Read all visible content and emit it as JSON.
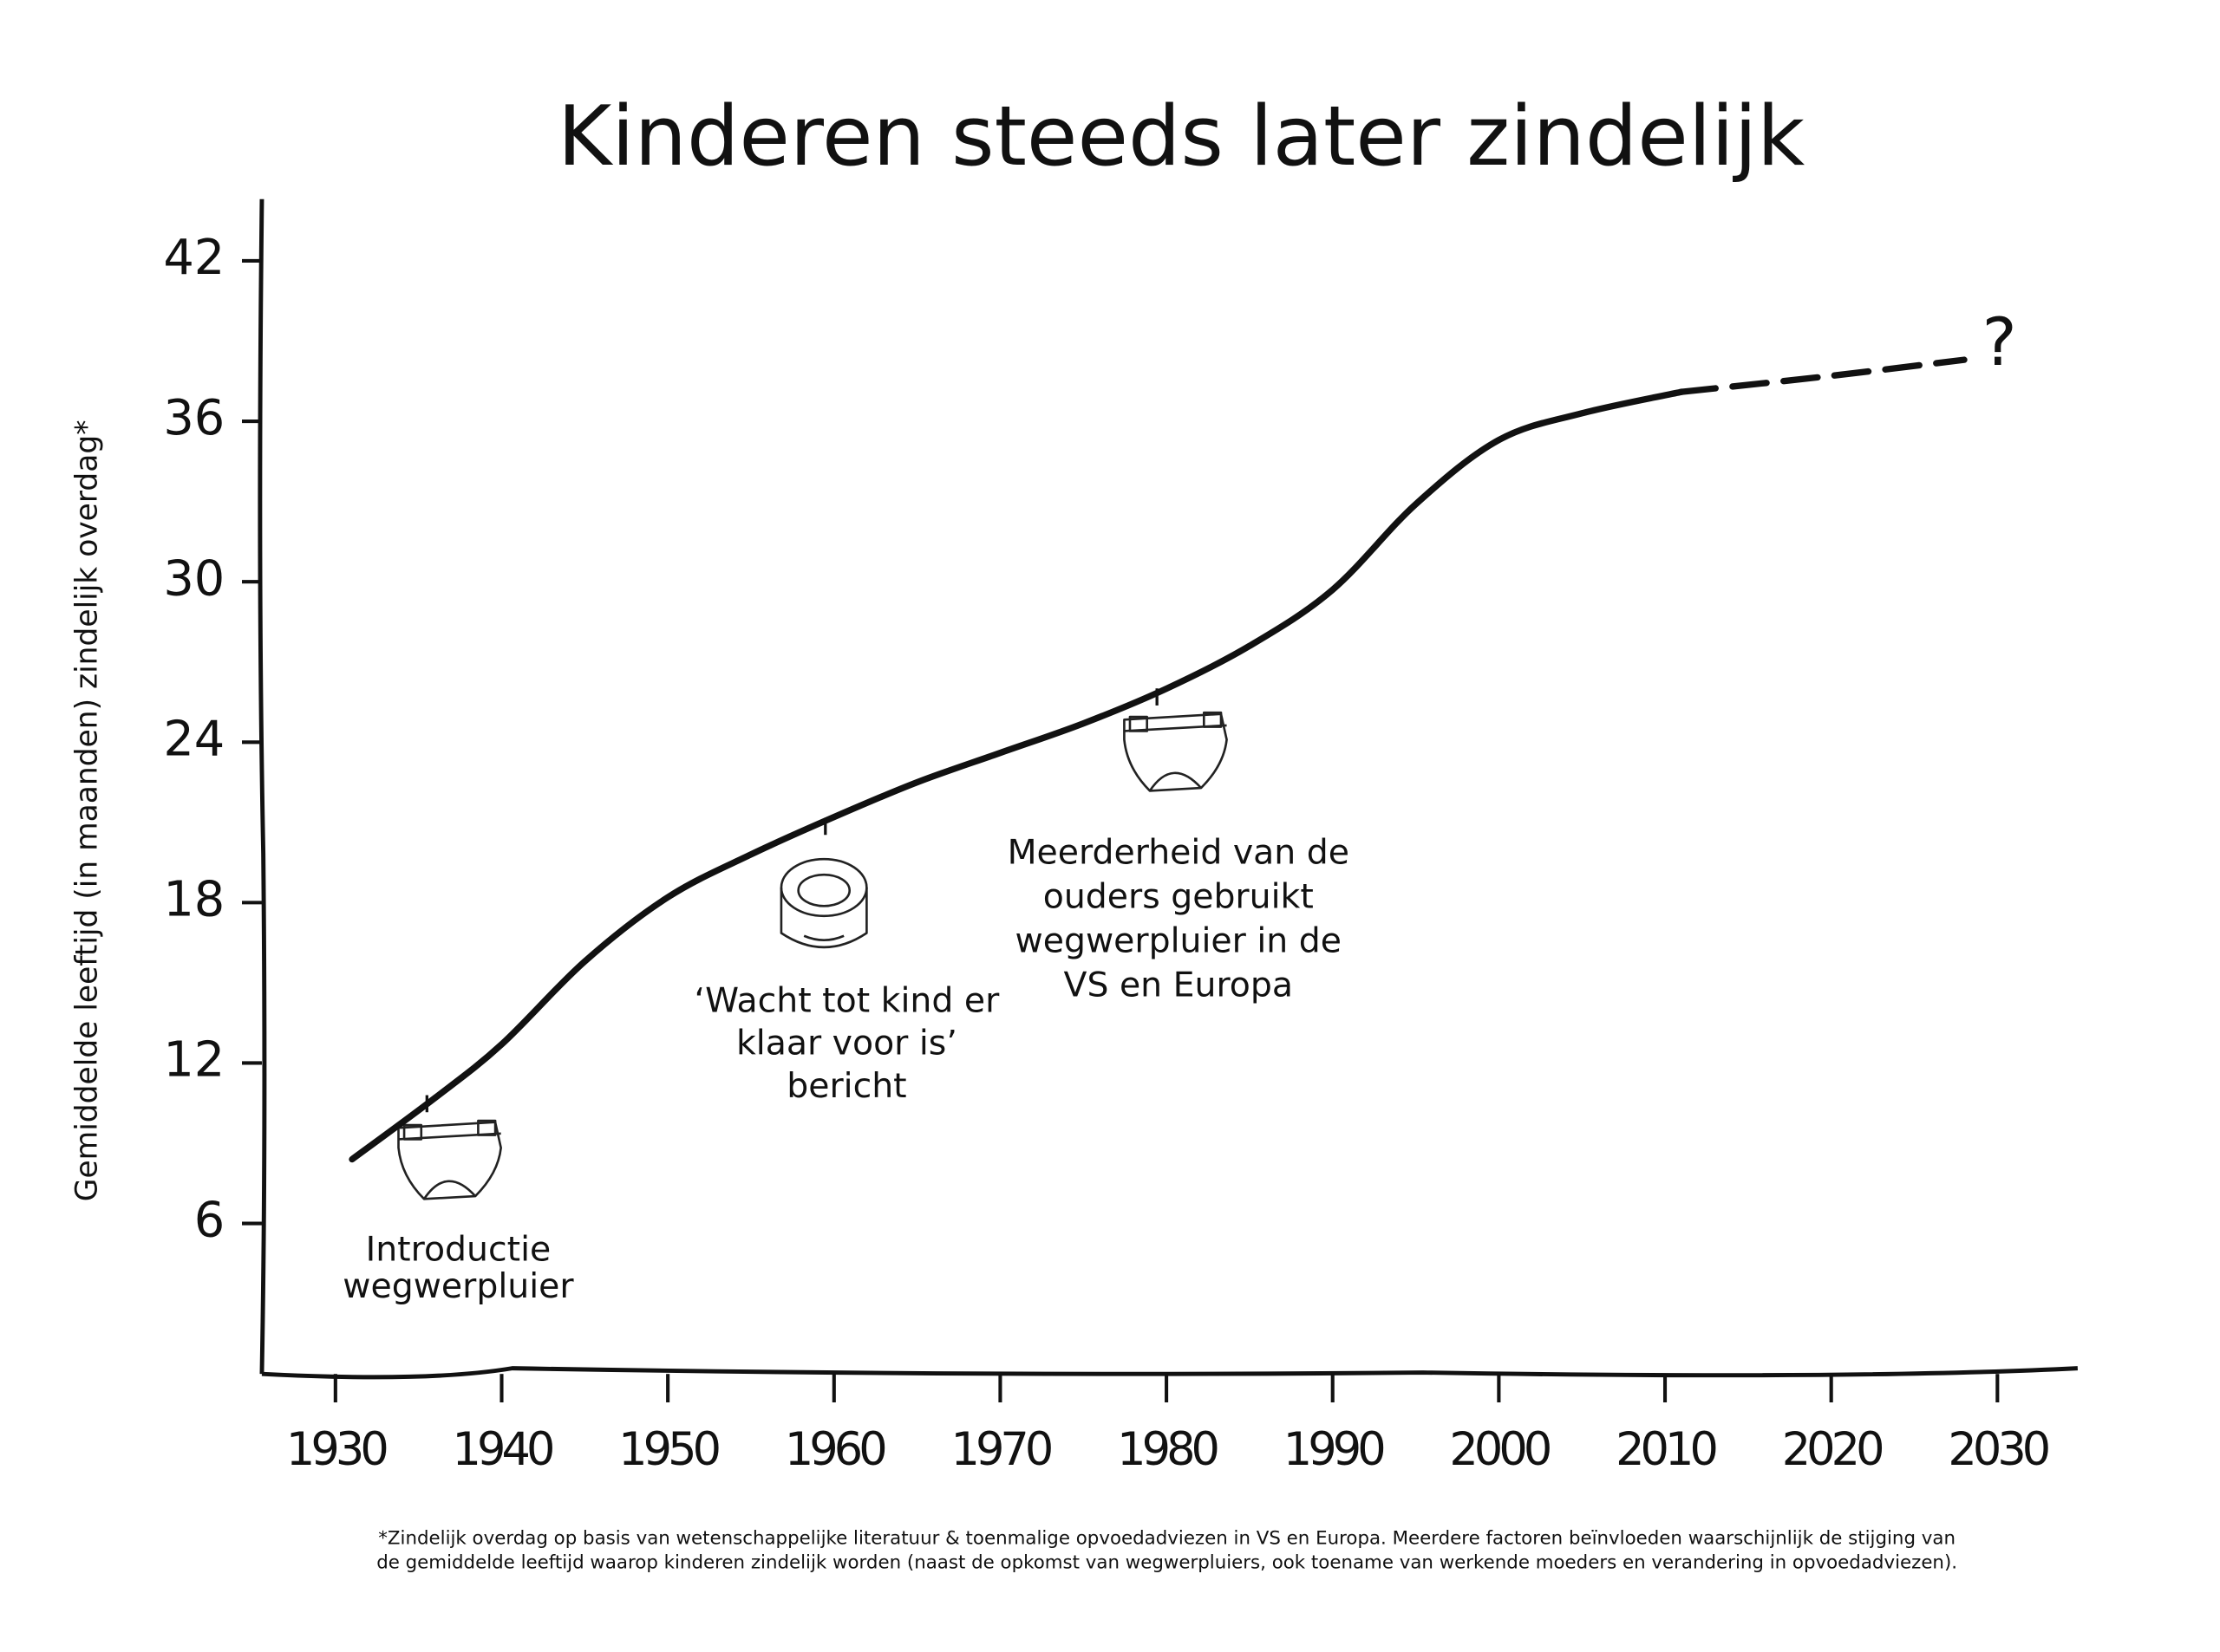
{
  "chart_data": {
    "type": "line",
    "title": "Kinderen steeds later zindelijk",
    "y_label": "Gemiddelde leeftijd (in maanden) zindelijk overdag*",
    "series": [
      {
        "color": "#111111",
        "dashed": false,
        "x": [
          1931,
          1936,
          1940,
          1945,
          1950,
          1955,
          1960,
          1965,
          1970,
          1975,
          1980,
          1985,
          1990,
          1995,
          2000,
          2005,
          2011
        ],
        "values": [
          8.4,
          10.7,
          12.7,
          15.8,
          18.2,
          19.8,
          21.2,
          22.5,
          23.6,
          24.7,
          26.0,
          27.6,
          29.7,
          32.9,
          35.3,
          36.3,
          37.1
        ]
      },
      {
        "color": "#111111",
        "dashed": true,
        "x": [
          2011,
          2020,
          2028
        ],
        "values": [
          37.1,
          37.7,
          38.3
        ]
      }
    ],
    "xlim": [
      1926,
      2035
    ],
    "xticks": [
      1930,
      1940,
      1950,
      1960,
      1970,
      1980,
      1990,
      2000,
      2010,
      2020,
      2030
    ],
    "ylim": [
      0,
      44
    ],
    "yticks": [
      6,
      12,
      18,
      24,
      30,
      36,
      42
    ],
    "annotations": [
      {
        "lines": [
          "Introductie",
          "wegwerpluier"
        ]
      },
      {
        "lines": [
          "‘Wacht tot kind er",
          "klaar voor is’",
          "bericht"
        ]
      },
      {
        "lines": [
          "Meerderheid van de",
          "ouders gebruikt",
          "wegwerpluier in de",
          "VS en Europa"
        ]
      },
      {
        "lines": [
          "?"
        ]
      }
    ],
    "footnote": [
      "*Zindelijk overdag op basis van wetenschappelijke literatuur & toenmalige opvoedadviezen in VS en Europa. Meerdere factoren beïnvloeden waarschijnlijk de stijging van",
      "de gemiddelde leeftijd waarop kinderen zindelijk worden (naast de opkomst van wegwerpluiers, ook toename van werkende moeders en verandering in opvoedadviezen)."
    ]
  }
}
